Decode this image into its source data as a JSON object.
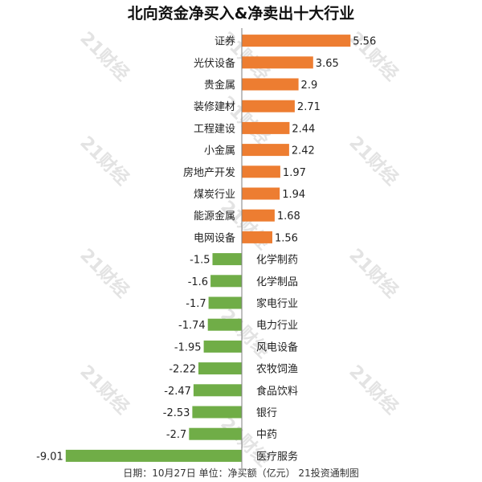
{
  "chart_data": {
    "type": "bar",
    "orientation": "horizontal",
    "title": "北向资金净买入&净卖出十大行业",
    "footer_note": "日期：10月27日 单位：净买额（亿元） 21投资通制图",
    "watermark": "21财经",
    "xlabel": "",
    "ylabel": "",
    "grid": false,
    "legend": "none",
    "categories": [
      "证券",
      "光伏设备",
      "贵金属",
      "装修建材",
      "工程建设",
      "小金属",
      "房地产开发",
      "煤炭行业",
      "能源金属",
      "电网设备",
      "化学制药",
      "化学制品",
      "家电行业",
      "电力行业",
      "风电设备",
      "农牧饲渔",
      "食品饮料",
      "银行",
      "中药",
      "医疗服务"
    ],
    "values": [
      5.56,
      3.65,
      2.9,
      2.71,
      2.44,
      2.42,
      1.97,
      1.94,
      1.68,
      1.56,
      -1.5,
      -1.6,
      -1.7,
      -1.74,
      -1.95,
      -2.22,
      -2.47,
      -2.53,
      -2.7,
      -9.01
    ],
    "value_labels": [
      "5.56",
      "3.65",
      "2.9",
      "2.71",
      "2.44",
      "2.42",
      "1.97",
      "1.94",
      "1.68",
      "1.56",
      "-1.5",
      "-1.6",
      "-1.7",
      "-1.74",
      "-1.95",
      "-2.22",
      "-2.47",
      "-2.53",
      "-2.7",
      "-9.01"
    ],
    "colors": {
      "positive": "#ED7D31",
      "negative": "#70AD47",
      "axis": "#7f7f7f",
      "watermark": "#e3e3e3"
    }
  }
}
